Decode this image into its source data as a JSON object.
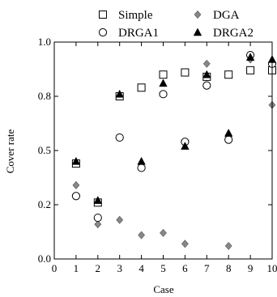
{
  "chart_data": {
    "type": "scatter",
    "xlabel": "Case",
    "ylabel": "Cover rate",
    "xlim": [
      0,
      10
    ],
    "ylim": [
      0,
      1.0
    ],
    "x_ticks": [
      0,
      1,
      2,
      3,
      4,
      5,
      6,
      7,
      8,
      9,
      10
    ],
    "x_tick_labels": [
      "0",
      "1",
      "2",
      "3",
      "4",
      "5",
      "6",
      "7",
      "8",
      "9",
      "10"
    ],
    "y_ticks": [
      0,
      0.25,
      0.5,
      0.75,
      1.0
    ],
    "y_tick_labels": [
      "0.0",
      "0.2",
      "0.5",
      "0.8",
      "1.0"
    ],
    "grid": false,
    "legend": "top",
    "series": [
      {
        "name": "Simple",
        "marker": "square-open",
        "color": "#000000",
        "x": [
          1,
          2,
          3,
          4,
          5,
          6,
          7,
          8,
          9,
          10
        ],
        "y": [
          0.44,
          0.26,
          0.75,
          0.79,
          0.85,
          0.86,
          0.84,
          0.85,
          0.87,
          0.87
        ]
      },
      {
        "name": "DGA",
        "marker": "diamond",
        "color": "#888888",
        "x": [
          1,
          2,
          3,
          4,
          5,
          6,
          7,
          8,
          9,
          10
        ],
        "y": [
          0.34,
          0.16,
          0.18,
          0.11,
          0.12,
          0.07,
          0.9,
          0.06,
          0.92,
          0.71
        ]
      },
      {
        "name": "DRGA1",
        "marker": "circle-open",
        "color": "#000000",
        "x": [
          1,
          2,
          3,
          4,
          5,
          6,
          7,
          8,
          9,
          10
        ],
        "y": [
          0.29,
          0.19,
          0.56,
          0.42,
          0.76,
          0.54,
          0.8,
          0.55,
          0.94,
          0.9
        ]
      },
      {
        "name": "DRGA2",
        "marker": "triangle",
        "color": "#000000",
        "x": [
          1,
          2,
          3,
          4,
          5,
          6,
          7,
          8,
          9,
          10
        ],
        "y": [
          0.45,
          0.27,
          0.76,
          0.45,
          0.81,
          0.52,
          0.85,
          0.58,
          0.93,
          0.92
        ]
      }
    ]
  }
}
